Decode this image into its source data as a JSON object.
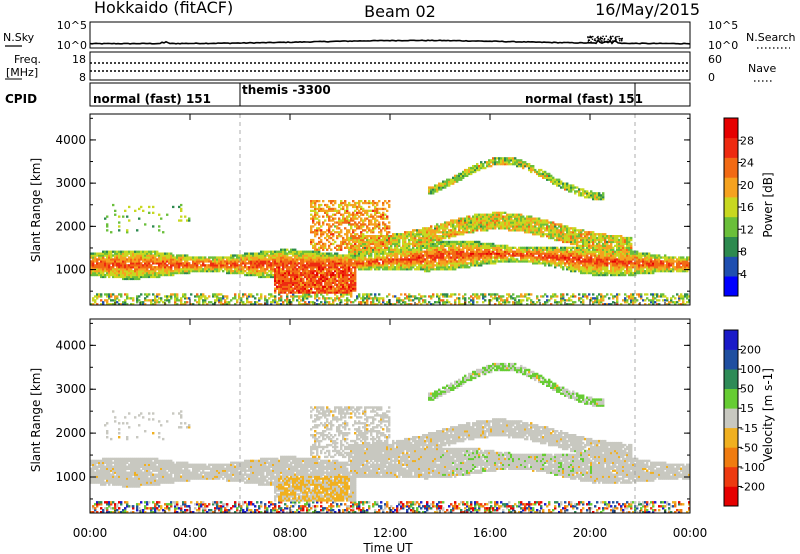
{
  "header": {
    "title": "Hokkaido (fitACF)",
    "beam": "Beam 02",
    "date": "16/May/2015"
  },
  "noise_panel": {
    "left_label": "N.Sky",
    "left_ticks": [
      "10^5",
      "10^0"
    ],
    "right_ticks": [
      "10^5",
      "10^0"
    ],
    "right_label": "N.Search"
  },
  "freq_panel": {
    "left_label_line1": "Freq.",
    "left_label_line2": "[MHz]",
    "left_ticks": [
      "18",
      "8"
    ],
    "right_ticks": [
      "60",
      "0"
    ],
    "right_label": "Nave"
  },
  "cpid_panel": {
    "label": "CPID",
    "segments": [
      {
        "text": "normal (fast) 151",
        "start_hour": 0,
        "end_hour": 6.0
      },
      {
        "text": "themis -3300",
        "start_hour": 6.0,
        "end_hour": 21.8
      },
      {
        "text": "normal (fast) 151",
        "start_hour": 21.8,
        "end_hour": 24
      }
    ]
  },
  "chart_data": [
    {
      "type": "heatmap",
      "panel": "power",
      "ylabel": "Slant Range [km]",
      "ylim": [
        180,
        4600
      ],
      "yticks": [
        "1000",
        "2000",
        "3000",
        "4000"
      ],
      "xlim_hours": [
        0,
        24
      ],
      "colorbar": {
        "label": "Power [dB]",
        "tick_labels": [
          "4",
          "8",
          "12",
          "16",
          "20",
          "24",
          "28"
        ],
        "colors": [
          "#0000ff",
          "#1f4fb0",
          "#2d8a4f",
          "#6abf3a",
          "#c8d820",
          "#f5a21f",
          "#f26a14",
          "#ee2a10",
          "#e60000"
        ]
      },
      "bands": [
        {
          "description": "main ionospheric band",
          "start_hour": 0,
          "end_hour": 24,
          "range_km": [
            800,
            1500
          ],
          "peak_power_db": 28
        },
        {
          "description": "dense low-range feature",
          "start_hour": 7.5,
          "end_hour": 10.5,
          "range_km": [
            450,
            1000
          ],
          "peak_power_db": 28
        },
        {
          "description": "upper arc",
          "start_hour": 10.5,
          "end_hour": 21.5,
          "range_km": [
            1500,
            2200
          ],
          "peak_power_db": 24
        },
        {
          "description": "far arc",
          "start_hour": 14,
          "end_hour": 20,
          "range_km": [
            2800,
            3600
          ],
          "peak_power_db": 16
        }
      ]
    },
    {
      "type": "heatmap",
      "panel": "velocity",
      "ylabel": "Slant Range [km]",
      "ylim": [
        180,
        4600
      ],
      "yticks": [
        "1000",
        "2000",
        "3000",
        "4000"
      ],
      "xlim_hours": [
        0,
        24
      ],
      "colorbar": {
        "label": "Velocity [m s-1]",
        "tick_labels": [
          "200",
          "100",
          "50",
          "15",
          "-15",
          "-50",
          "-100",
          "-200"
        ],
        "colors": [
          "#1a1ac8",
          "#1f4fa0",
          "#2e8b57",
          "#66cc33",
          "#c8c8c0",
          "#f0b020",
          "#f07c10",
          "#ee3a10",
          "#e60000"
        ]
      }
    }
  ],
  "xaxis": {
    "tick_labels": [
      "00:00",
      "04:00",
      "08:00",
      "12:00",
      "16:00",
      "20:00",
      "00:00"
    ],
    "label": "Time UT"
  }
}
